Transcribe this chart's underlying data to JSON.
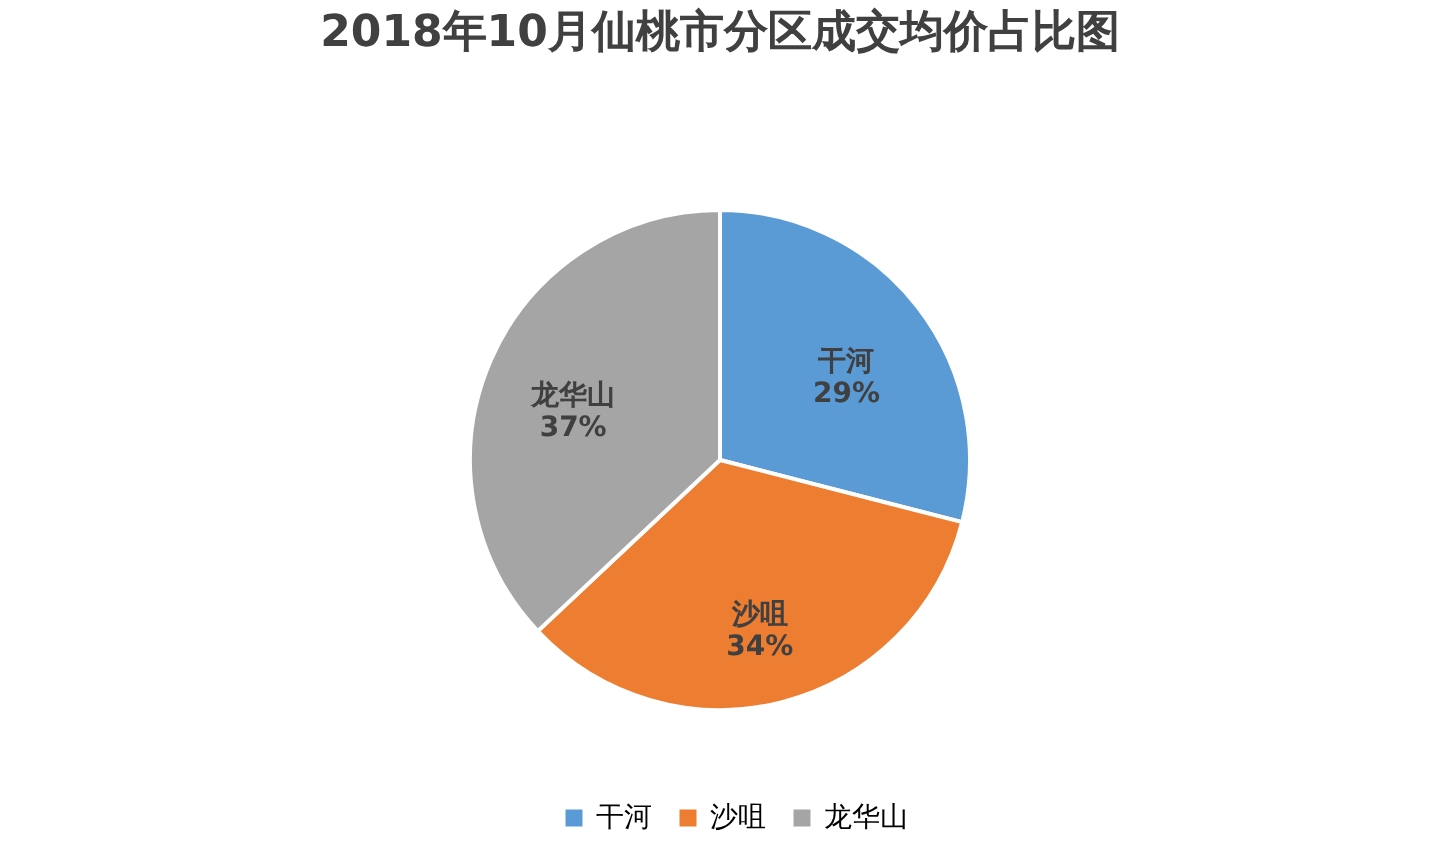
{
  "chart_data": {
    "type": "pie",
    "title": "2018年10月仙桃市分区成交均价占比图",
    "categories": [
      "干河",
      "沙咀",
      "龙华山"
    ],
    "values": [
      29,
      34,
      37
    ],
    "colors": [
      "#5b9bd5",
      "#ed7d31",
      "#a5a5a5"
    ],
    "value_labels": [
      "29%",
      "34%",
      "37%"
    ],
    "legend": "bottom"
  }
}
